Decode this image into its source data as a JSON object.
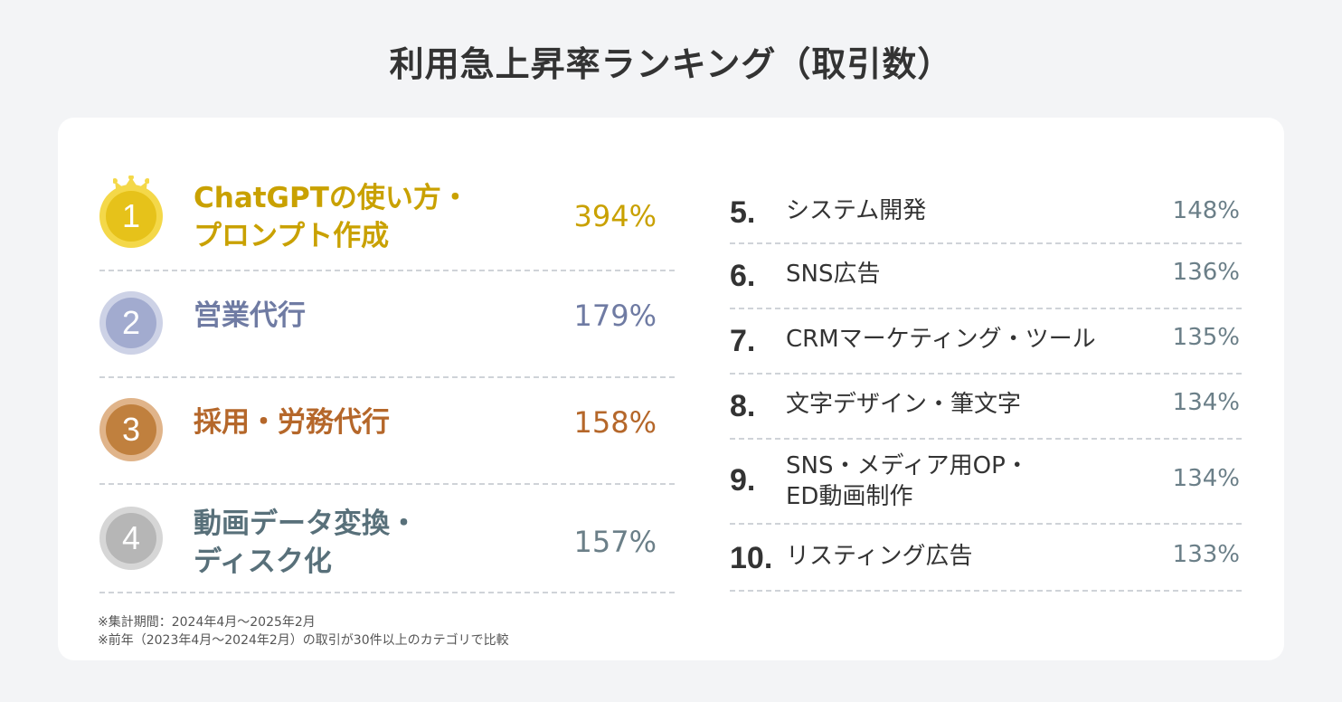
{
  "title": "利用急上昇率ランキング（取引数）",
  "top_ranks": [
    {
      "rank": "1",
      "name_line1": "ChatGPTの使い方・",
      "name_line2": "プロンプト作成",
      "percent": "394%",
      "color": "#c9a100"
    },
    {
      "rank": "2",
      "name_line1": "営業代行",
      "name_line2": "",
      "percent": "179%",
      "color": "#6f7ba3"
    },
    {
      "rank": "3",
      "name_line1": "採用・労務代行",
      "name_line2": "",
      "percent": "158%",
      "color": "#b5672a"
    },
    {
      "rank": "4",
      "name_line1": "動画データ変換・",
      "name_line2": "ディスク化",
      "percent": "157%",
      "color": "#58707a"
    }
  ],
  "other_ranks": [
    {
      "rank": "5.",
      "name_line1": "システム開発",
      "name_line2": "",
      "percent": "148%"
    },
    {
      "rank": "6.",
      "name_line1": "SNS広告",
      "name_line2": "",
      "percent": "136%"
    },
    {
      "rank": "7.",
      "name_line1": "CRMマーケティング・ツール",
      "name_line2": "",
      "percent": "135%"
    },
    {
      "rank": "8.",
      "name_line1": "文字デザイン・筆文字",
      "name_line2": "",
      "percent": "134%"
    },
    {
      "rank": "9.",
      "name_line1": "SNS・メディア用OP・",
      "name_line2": "ED動画制作",
      "percent": "134%"
    },
    {
      "rank": "10.",
      "name_line1": "リスティング広告",
      "name_line2": "",
      "percent": "133%"
    }
  ],
  "footnotes": [
    "※集計期間：2024年4月〜2025年2月",
    "※前年（2023年4月〜2024年2月）の取引が30件以上のカテゴリで比較"
  ],
  "icons": {
    "crown": "crown-icon"
  }
}
